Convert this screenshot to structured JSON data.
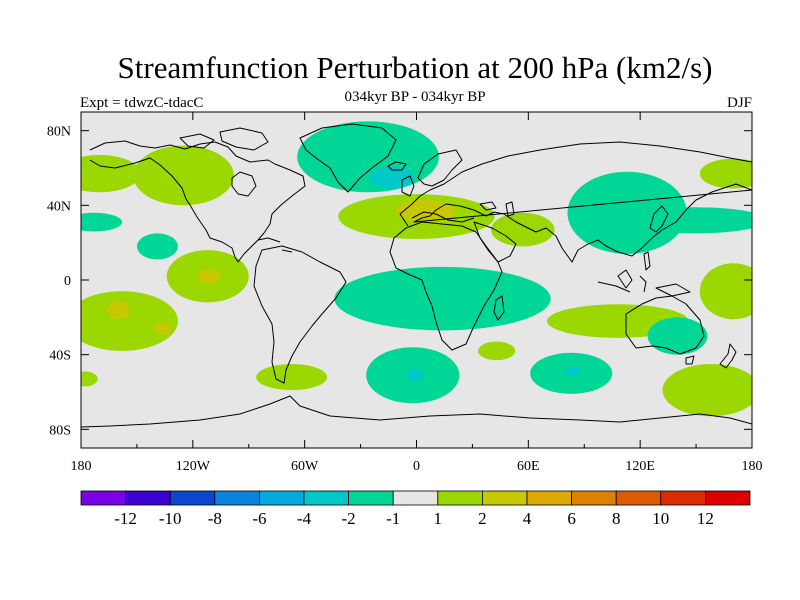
{
  "title": "Streamfunction Perturbation at 200 hPa (km2/s)",
  "subtitle": "034kyr BP - 034kyr BP",
  "left_label": "Expt = tdwzC-tdacC",
  "right_label": "DJF",
  "colors": {
    "background_field": "#e6e6e6",
    "coast": "#000000",
    "neg_1_2": "#00d696",
    "neg_2_4": "#00c8c8",
    "pos_1_2": "#9bd700",
    "pos_2_4": "#c8c800",
    "pos_4_6": "#dca000"
  },
  "map": {
    "projection": "cylindrical-equidistant",
    "lon_range": [
      -180,
      180
    ],
    "lat_range": [
      -90,
      90
    ],
    "x_ticks": [
      {
        "lon": -180,
        "label": "180"
      },
      {
        "lon": -120,
        "label": "120W"
      },
      {
        "lon": -60,
        "label": "60W"
      },
      {
        "lon": 0,
        "label": "0"
      },
      {
        "lon": 60,
        "label": "60E"
      },
      {
        "lon": 120,
        "label": "120E"
      },
      {
        "lon": 180,
        "label": "180"
      }
    ],
    "y_ticks": [
      {
        "lat": 80,
        "label": "80N"
      },
      {
        "lat": 40,
        "label": "40N"
      },
      {
        "lat": 0,
        "label": "0"
      },
      {
        "lat": -40,
        "label": "40S"
      },
      {
        "lat": -80,
        "label": "80S"
      }
    ],
    "regions": [
      {
        "level": "pos_1_2",
        "lon": -170,
        "lat": 57,
        "rlon": 22,
        "rlat": 10
      },
      {
        "level": "pos_1_2",
        "lon": -125,
        "lat": 56,
        "rlon": 27,
        "rlat": 16
      },
      {
        "level": "neg_1_2",
        "lon": -26,
        "lat": 66,
        "rlon": 38,
        "rlat": 19
      },
      {
        "level": "neg_2_4",
        "lon": -13,
        "lat": 55,
        "rlon": 12,
        "rlat": 6
      },
      {
        "level": "neg_1_2",
        "lon": -173,
        "lat": 31,
        "rlon": 15,
        "rlat": 5
      },
      {
        "level": "neg_1_2",
        "lon": -139,
        "lat": 18,
        "rlon": 11,
        "rlat": 7
      },
      {
        "level": "pos_1_2",
        "lon": 0,
        "lat": 34,
        "rlon": 42,
        "rlat": 12
      },
      {
        "level": "pos_2_4",
        "lon": 5,
        "lat": 37,
        "rlon": 16,
        "rlat": 6
      },
      {
        "level": "pos_1_2",
        "lon": 57,
        "lat": 27,
        "rlon": 17,
        "rlat": 9
      },
      {
        "level": "neg_1_2",
        "lon": 113,
        "lat": 36,
        "rlon": 32,
        "rlat": 22
      },
      {
        "level": "neg_1_2",
        "lon": 150,
        "lat": 32,
        "rlon": 38,
        "rlat": 7
      },
      {
        "level": "pos_1_2",
        "lon": 170,
        "lat": 57,
        "rlon": 18,
        "rlat": 8
      },
      {
        "level": "pos_1_2",
        "lon": -112,
        "lat": 2,
        "rlon": 22,
        "rlat": 14
      },
      {
        "level": "pos_2_4",
        "lon": -111,
        "lat": 2,
        "rlon": 6,
        "rlat": 4
      },
      {
        "level": "pos_1_2",
        "lon": -158,
        "lat": -22,
        "rlon": 30,
        "rlat": 16
      },
      {
        "level": "pos_2_4",
        "lon": -160,
        "lat": -16,
        "rlon": 6,
        "rlat": 5
      },
      {
        "level": "pos_2_4",
        "lon": -136,
        "lat": -26,
        "rlon": 5,
        "rlat": 3
      },
      {
        "level": "neg_1_2",
        "lon": 14,
        "lat": -10,
        "rlon": 58,
        "rlat": 17
      },
      {
        "level": "pos_1_2",
        "lon": 170,
        "lat": -6,
        "rlon": 18,
        "rlat": 15
      },
      {
        "level": "pos_1_2",
        "lon": 108,
        "lat": -22,
        "rlon": 38,
        "rlat": 9
      },
      {
        "level": "neg_1_2",
        "lon": 140,
        "lat": -30,
        "rlon": 16,
        "rlat": 10
      },
      {
        "level": "pos_1_2",
        "lon": 43,
        "lat": -38,
        "rlon": 10,
        "rlat": 5
      },
      {
        "level": "pos_1_2",
        "lon": -67,
        "lat": -52,
        "rlon": 19,
        "rlat": 7
      },
      {
        "level": "neg_1_2",
        "lon": -2,
        "lat": -51,
        "rlon": 25,
        "rlat": 15
      },
      {
        "level": "neg_2_4",
        "lon": -1,
        "lat": -51,
        "rlon": 5,
        "rlat": 3
      },
      {
        "level": "neg_1_2",
        "lon": 83,
        "lat": -50,
        "rlon": 22,
        "rlat": 11
      },
      {
        "level": "neg_2_4",
        "lon": 84,
        "lat": -49,
        "rlon": 5,
        "rlat": 2
      },
      {
        "level": "pos_1_2",
        "lon": 158,
        "lat": -59,
        "rlon": 26,
        "rlat": 14
      },
      {
        "level": "pos_1_2",
        "lon": -178,
        "lat": -53,
        "rlon": 7,
        "rlat": 4
      }
    ]
  },
  "colorbar": {
    "colors": [
      "#7a00e6",
      "#3c00d2",
      "#0a46d2",
      "#0a82e0",
      "#00aadc",
      "#00c8c8",
      "#00d696",
      "#e6e6e6",
      "#9bd700",
      "#c8c800",
      "#dcaa00",
      "#dc8200",
      "#dc5a00",
      "#dc2d00",
      "#dc0000"
    ],
    "labels": [
      "-12",
      "-10",
      "-8",
      "-6",
      "-4",
      "-2",
      "-1",
      "1",
      "2",
      "4",
      "6",
      "8",
      "10",
      "12"
    ]
  }
}
